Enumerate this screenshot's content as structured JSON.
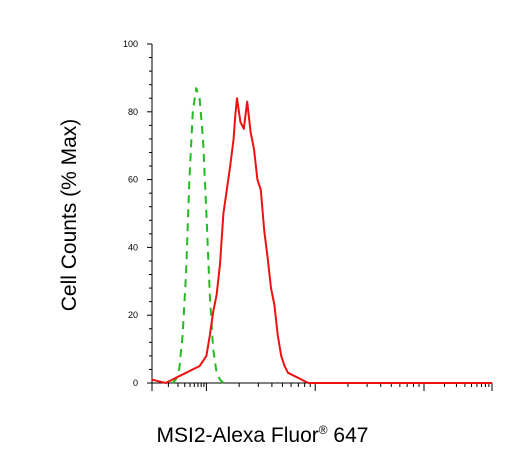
{
  "chart_data": {
    "type": "line",
    "xlabel_main": "MSI2-Alexa Fluor",
    "xlabel_sup": "®",
    "xlabel_suffix": " 647",
    "ylabel": "Cell Counts (% Max)",
    "ylim": [
      0,
      100
    ],
    "yticks": [
      "0",
      "20",
      "40",
      "60",
      "80",
      "100"
    ],
    "grid": false,
    "legend": "none",
    "series": [
      {
        "color": "#22bb22",
        "style": "dashed",
        "points": [
          [
            0.06,
            0
          ],
          [
            0.07,
            1
          ],
          [
            0.08,
            4
          ],
          [
            0.09,
            14
          ],
          [
            0.1,
            32
          ],
          [
            0.11,
            60
          ],
          [
            0.12,
            80
          ],
          [
            0.13,
            87
          ],
          [
            0.14,
            84
          ],
          [
            0.15,
            72
          ],
          [
            0.16,
            50
          ],
          [
            0.17,
            26
          ],
          [
            0.18,
            10
          ],
          [
            0.19,
            3
          ],
          [
            0.2,
            1
          ],
          [
            0.21,
            0
          ]
        ]
      },
      {
        "color": "#ee1111",
        "style": "solid",
        "points": [
          [
            0.0,
            1
          ],
          [
            0.02,
            0.5
          ],
          [
            0.04,
            0
          ],
          [
            0.06,
            1
          ],
          [
            0.08,
            2
          ],
          [
            0.1,
            3
          ],
          [
            0.12,
            4
          ],
          [
            0.14,
            5
          ],
          [
            0.16,
            8
          ],
          [
            0.17,
            14
          ],
          [
            0.18,
            21
          ],
          [
            0.19,
            26
          ],
          [
            0.2,
            35
          ],
          [
            0.21,
            50
          ],
          [
            0.22,
            57
          ],
          [
            0.23,
            64
          ],
          [
            0.24,
            72
          ],
          [
            0.245,
            79
          ],
          [
            0.25,
            84
          ],
          [
            0.26,
            77
          ],
          [
            0.27,
            75
          ],
          [
            0.28,
            83
          ],
          [
            0.29,
            74
          ],
          [
            0.3,
            69
          ],
          [
            0.31,
            60
          ],
          [
            0.32,
            57
          ],
          [
            0.33,
            45
          ],
          [
            0.34,
            37
          ],
          [
            0.35,
            28
          ],
          [
            0.36,
            23
          ],
          [
            0.37,
            14
          ],
          [
            0.38,
            8
          ],
          [
            0.39,
            5
          ],
          [
            0.4,
            3
          ],
          [
            0.42,
            2
          ],
          [
            0.44,
            1
          ],
          [
            0.46,
            0
          ],
          [
            1.0,
            0
          ]
        ]
      }
    ]
  }
}
